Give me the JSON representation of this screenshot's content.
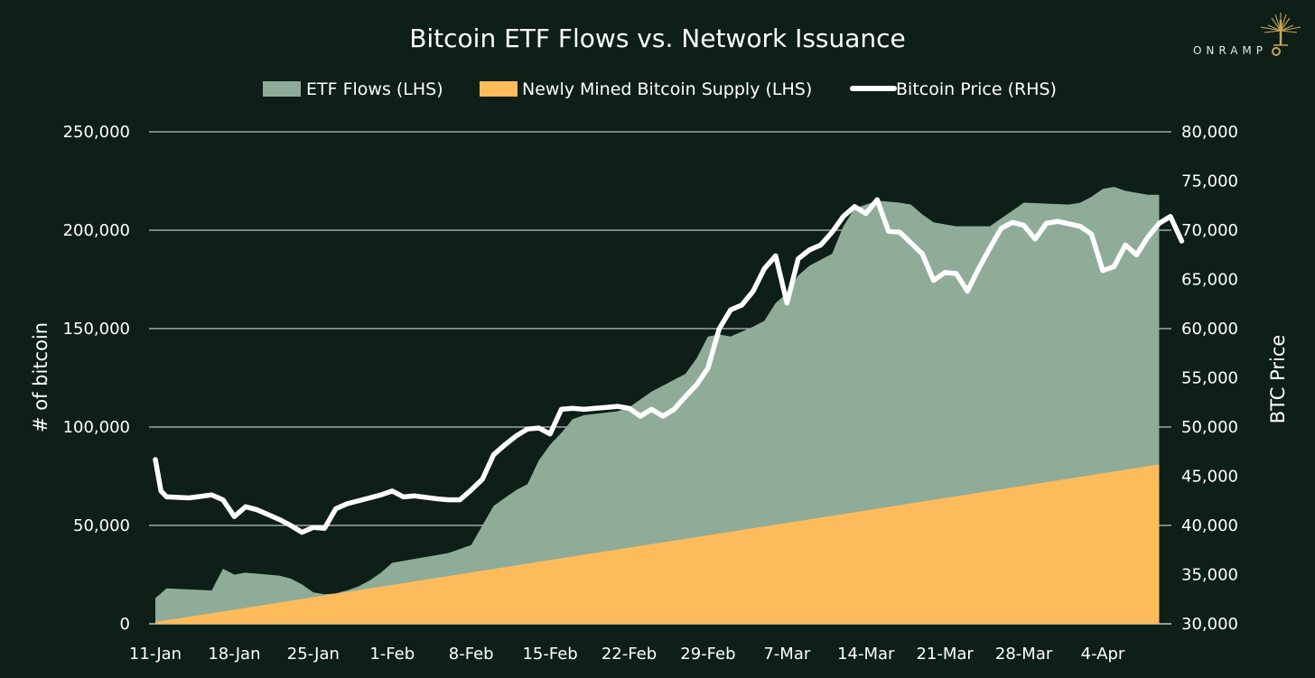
{
  "chart_data": {
    "type": "area",
    "title": "Bitcoin ETF Flows vs. Network Issuance",
    "ylabel": "# of bitcoin",
    "ylabel_right": "BTC Price",
    "ylim": [
      0,
      250000
    ],
    "ylim_right": [
      30000,
      80000
    ],
    "y_ticks": [
      "0",
      "50,000",
      "100,000",
      "150,000",
      "200,000",
      "250,000"
    ],
    "y_ticks_right": [
      "30,000",
      "35,000",
      "40,000",
      "45,000",
      "50,000",
      "55,000",
      "60,000",
      "65,000",
      "70,000",
      "75,000",
      "80,000"
    ],
    "x_ticks": [
      "11-Jan",
      "18-Jan",
      "25-Jan",
      "1-Feb",
      "8-Feb",
      "15-Feb",
      "22-Feb",
      "29-Feb",
      "7-Mar",
      "14-Mar",
      "21-Mar",
      "28-Mar",
      "4-Apr"
    ],
    "x_tick_days": [
      0,
      7,
      14,
      21,
      28,
      35,
      42,
      49,
      56,
      63,
      70,
      77,
      84
    ],
    "x_range_days": [
      0,
      90
    ],
    "grid": "horizontal",
    "legend_position": "top",
    "series": [
      {
        "name": "ETF Flows (LHS)",
        "kind": "area",
        "color": "#8fac99",
        "points": [
          [
            0,
            13000
          ],
          [
            1,
            18000
          ],
          [
            5,
            17000
          ],
          [
            6,
            28000
          ],
          [
            7,
            25000
          ],
          [
            8,
            26000
          ],
          [
            10,
            25000
          ],
          [
            11,
            24500
          ],
          [
            12,
            23000
          ],
          [
            13,
            20000
          ],
          [
            14,
            16000
          ],
          [
            15,
            15000
          ],
          [
            16,
            15500
          ],
          [
            17,
            17000
          ],
          [
            18,
            19000
          ],
          [
            19,
            22000
          ],
          [
            20,
            26000
          ],
          [
            21,
            31000
          ],
          [
            22,
            32000
          ],
          [
            23,
            33000
          ],
          [
            25,
            35000
          ],
          [
            26,
            36000
          ],
          [
            27,
            38000
          ],
          [
            28,
            40000
          ],
          [
            29,
            50000
          ],
          [
            30,
            60000
          ],
          [
            31,
            64000
          ],
          [
            32,
            68000
          ],
          [
            33,
            71000
          ],
          [
            34,
            83000
          ],
          [
            35,
            91000
          ],
          [
            36,
            97000
          ],
          [
            37,
            104000
          ],
          [
            38,
            106000
          ],
          [
            41,
            108000
          ],
          [
            42,
            110000
          ],
          [
            44,
            118000
          ],
          [
            46,
            124000
          ],
          [
            47,
            127000
          ],
          [
            48,
            135000
          ],
          [
            49,
            146000
          ],
          [
            50,
            147000
          ],
          [
            51,
            146000
          ],
          [
            53,
            151000
          ],
          [
            54,
            154000
          ],
          [
            55,
            163000
          ],
          [
            56,
            168000
          ],
          [
            57,
            177000
          ],
          [
            58,
            182000
          ],
          [
            59,
            185000
          ],
          [
            60,
            188000
          ],
          [
            61,
            202000
          ],
          [
            62,
            211000
          ],
          [
            63,
            213000
          ],
          [
            64,
            215000
          ],
          [
            66,
            214000
          ],
          [
            67,
            213000
          ],
          [
            68,
            208000
          ],
          [
            69,
            204000
          ],
          [
            70,
            203000
          ],
          [
            71,
            202000
          ],
          [
            74,
            202000
          ],
          [
            75,
            206000
          ],
          [
            76,
            210000
          ],
          [
            77,
            214000
          ],
          [
            81,
            213000
          ],
          [
            82,
            214000
          ],
          [
            83,
            217000
          ],
          [
            84,
            221000
          ],
          [
            85,
            222000
          ],
          [
            86,
            220000
          ],
          [
            88,
            218000
          ],
          [
            89,
            218000
          ]
        ]
      },
      {
        "name": "Newly Mined Bitcoin Supply (LHS)",
        "kind": "area",
        "color": "#fdbb5c",
        "points": [
          [
            0,
            900
          ],
          [
            89,
            81000
          ]
        ]
      },
      {
        "name": "Bitcoin Price (RHS)",
        "kind": "line",
        "color": "#ffffff",
        "axis": "right",
        "points": [
          [
            0,
            46700
          ],
          [
            0.5,
            43500
          ],
          [
            1,
            42900
          ],
          [
            3,
            42800
          ],
          [
            5,
            43100
          ],
          [
            6,
            42600
          ],
          [
            7,
            40900
          ],
          [
            8,
            41900
          ],
          [
            9,
            41600
          ],
          [
            10,
            41100
          ],
          [
            11,
            40600
          ],
          [
            12,
            40000
          ],
          [
            13,
            39300
          ],
          [
            14,
            39800
          ],
          [
            15,
            39700
          ],
          [
            16,
            41700
          ],
          [
            17,
            42200
          ],
          [
            18,
            42500
          ],
          [
            19,
            42800
          ],
          [
            20,
            43100
          ],
          [
            21,
            43500
          ],
          [
            22,
            42900
          ],
          [
            23,
            43000
          ],
          [
            25,
            42700
          ],
          [
            26,
            42600
          ],
          [
            27,
            42600
          ],
          [
            28,
            43600
          ],
          [
            29,
            44700
          ],
          [
            30,
            47200
          ],
          [
            31,
            48200
          ],
          [
            32,
            49100
          ],
          [
            33,
            49800
          ],
          [
            34,
            49900
          ],
          [
            35,
            49300
          ],
          [
            36,
            51800
          ],
          [
            37,
            51900
          ],
          [
            38,
            51800
          ],
          [
            39,
            51900
          ],
          [
            40,
            52000
          ],
          [
            41,
            52100
          ],
          [
            42,
            51900
          ],
          [
            43,
            51100
          ],
          [
            44,
            51800
          ],
          [
            45,
            51100
          ],
          [
            46,
            51800
          ],
          [
            47,
            53100
          ],
          [
            48,
            54300
          ],
          [
            49,
            56000
          ],
          [
            50,
            60000
          ],
          [
            51,
            61900
          ],
          [
            52,
            62400
          ],
          [
            53,
            63800
          ],
          [
            54,
            66100
          ],
          [
            55,
            67400
          ],
          [
            56,
            62600
          ],
          [
            57,
            67100
          ],
          [
            58,
            68000
          ],
          [
            59,
            68500
          ],
          [
            60,
            69800
          ],
          [
            61,
            71400
          ],
          [
            62,
            72400
          ],
          [
            63,
            71700
          ],
          [
            64,
            73100
          ],
          [
            65,
            69900
          ],
          [
            66,
            69800
          ],
          [
            67,
            68700
          ],
          [
            68,
            67600
          ],
          [
            69,
            64900
          ],
          [
            70,
            65700
          ],
          [
            71,
            65600
          ],
          [
            72,
            63800
          ],
          [
            73,
            66100
          ],
          [
            74,
            68200
          ],
          [
            75,
            70200
          ],
          [
            76,
            70800
          ],
          [
            77,
            70500
          ],
          [
            78,
            69100
          ],
          [
            79,
            70700
          ],
          [
            80,
            70900
          ],
          [
            82,
            70400
          ],
          [
            83,
            69600
          ],
          [
            84,
            65900
          ],
          [
            85,
            66300
          ],
          [
            86,
            68500
          ],
          [
            87,
            67500
          ],
          [
            88,
            69300
          ],
          [
            89,
            70700
          ],
          [
            90,
            71400
          ],
          [
            91,
            68900
          ]
        ]
      }
    ]
  },
  "branding": {
    "logo_text": "ONRAMP",
    "logo_color": "#c9a45a"
  }
}
